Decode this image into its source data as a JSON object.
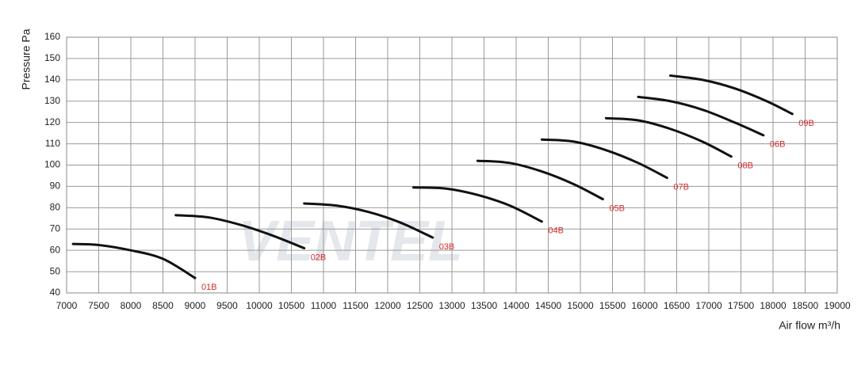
{
  "chart_data": {
    "type": "line",
    "watermark": "VENTEL",
    "x_label": "Air flow m³/h",
    "y_label": "Pressure Pa",
    "xlim": [
      7000,
      19000
    ],
    "ylim": [
      40,
      160
    ],
    "xticks": [
      7000,
      7500,
      8000,
      8500,
      9000,
      9500,
      10000,
      10500,
      11000,
      11500,
      12000,
      12500,
      13000,
      13500,
      14000,
      14500,
      15000,
      15500,
      16000,
      16500,
      17000,
      17500,
      18000,
      18500,
      19000
    ],
    "yticks": [
      40,
      50,
      60,
      70,
      80,
      90,
      100,
      110,
      120,
      130,
      140,
      150,
      160
    ],
    "grid": true,
    "label_color": "#d42a2a",
    "series": [
      {
        "name": "01B",
        "color": "#111111",
        "x": [
          7100,
          7500,
          8000,
          8500,
          9000
        ],
        "values": [
          63,
          62.5,
          60,
          56,
          47
        ]
      },
      {
        "name": "02B",
        "color": "#111111",
        "x": [
          8700,
          9200,
          9700,
          10200,
          10700
        ],
        "values": [
          76.5,
          75.5,
          72,
          67,
          61
        ]
      },
      {
        "name": "03B",
        "color": "#111111",
        "x": [
          10700,
          11200,
          11700,
          12200,
          12700
        ],
        "values": [
          82,
          81,
          78,
          73,
          66
        ]
      },
      {
        "name": "04B",
        "color": "#111111",
        "x": [
          12400,
          12900,
          13400,
          13900,
          14400
        ],
        "values": [
          89.5,
          89,
          86,
          81,
          73.5
        ]
      },
      {
        "name": "05B",
        "color": "#111111",
        "x": [
          13400,
          13900,
          14400,
          14900,
          15350
        ],
        "values": [
          102,
          101,
          97,
          91,
          84
        ]
      },
      {
        "name": "07B",
        "color": "#111111",
        "x": [
          14400,
          14900,
          15400,
          15900,
          16350
        ],
        "values": [
          112,
          111,
          107,
          101,
          94
        ]
      },
      {
        "name": "08B",
        "color": "#111111",
        "x": [
          15400,
          15900,
          16400,
          16900,
          17350
        ],
        "values": [
          122,
          121,
          117,
          111,
          104
        ]
      },
      {
        "name": "06B",
        "color": "#111111",
        "x": [
          15900,
          16400,
          16900,
          17400,
          17850
        ],
        "values": [
          132,
          130,
          126,
          120,
          114
        ]
      },
      {
        "name": "09B",
        "color": "#111111",
        "x": [
          16400,
          16900,
          17400,
          17900,
          18300
        ],
        "values": [
          142,
          140,
          136,
          130,
          124
        ]
      }
    ]
  }
}
